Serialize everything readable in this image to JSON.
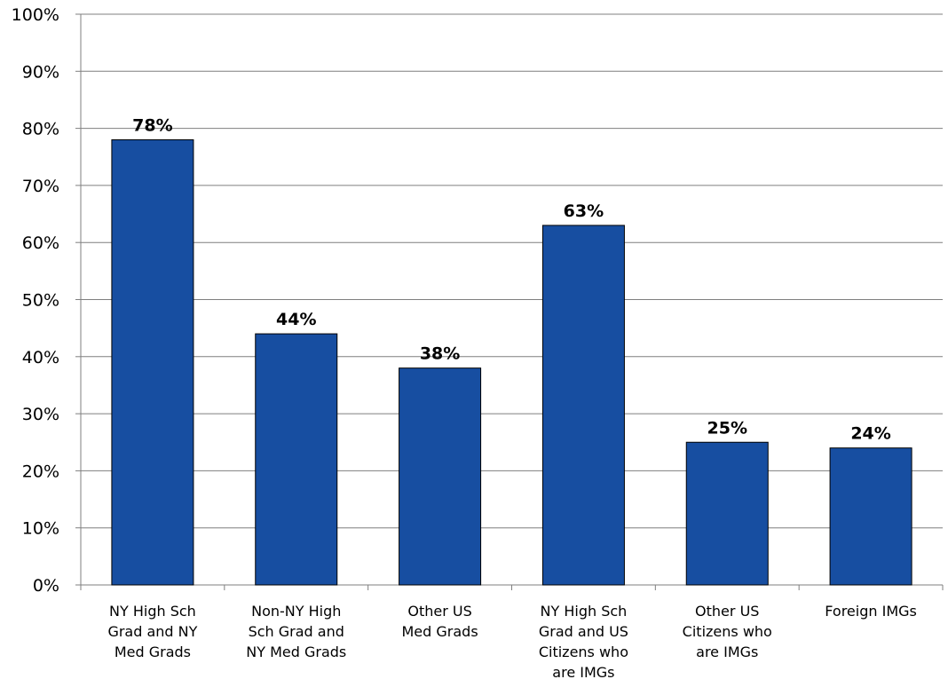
{
  "chart_data": {
    "type": "bar",
    "categories": [
      [
        "NY High Sch",
        "Grad and NY",
        "Med Grads"
      ],
      [
        "Non-NY High",
        "Sch Grad and",
        "NY Med Grads"
      ],
      [
        "Other US",
        "Med Grads"
      ],
      [
        "NY High Sch",
        "Grad and US",
        "Citizens who",
        "are IMGs"
      ],
      [
        "Other US",
        "Citizens who",
        "are IMGs"
      ],
      [
        "Foreign IMGs"
      ]
    ],
    "values": [
      78,
      44,
      38,
      63,
      25,
      24
    ],
    "data_labels": [
      "78%",
      "44%",
      "38%",
      "63%",
      "25%",
      "24%"
    ],
    "y_ticks": [
      "0%",
      "10%",
      "20%",
      "30%",
      "40%",
      "50%",
      "60%",
      "70%",
      "80%",
      "90%",
      "100%"
    ],
    "ylim": [
      0,
      100
    ],
    "grid": "horizontal",
    "bar_color": "#174ea1",
    "grid_color": "#7f7f7f"
  }
}
